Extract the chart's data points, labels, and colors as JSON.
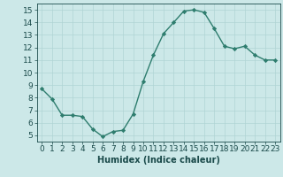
{
  "x": [
    0,
    1,
    2,
    3,
    4,
    5,
    6,
    7,
    8,
    9,
    10,
    11,
    12,
    13,
    14,
    15,
    16,
    17,
    18,
    19,
    20,
    21,
    22,
    23
  ],
  "y": [
    8.7,
    7.9,
    6.6,
    6.6,
    6.5,
    5.5,
    4.9,
    5.3,
    5.4,
    6.7,
    9.3,
    11.4,
    13.1,
    14.0,
    14.9,
    15.0,
    14.8,
    13.5,
    12.1,
    11.9,
    12.1,
    11.4,
    11.0,
    11.0
  ],
  "line_color": "#2e7d6e",
  "bg_color": "#cce8e8",
  "grid_color": "#b0d4d4",
  "xlabel": "Humidex (Indice chaleur)",
  "ylim": [
    4.5,
    15.5
  ],
  "xlim": [
    -0.5,
    23.5
  ],
  "yticks": [
    5,
    6,
    7,
    8,
    9,
    10,
    11,
    12,
    13,
    14,
    15
  ],
  "xticks": [
    0,
    1,
    2,
    3,
    4,
    5,
    6,
    7,
    8,
    9,
    10,
    11,
    12,
    13,
    14,
    15,
    16,
    17,
    18,
    19,
    20,
    21,
    22,
    23
  ],
  "marker": "D",
  "marker_size": 2.2,
  "line_width": 1.0,
  "font_color": "#1a4a4a",
  "xlabel_fontsize": 7,
  "tick_fontsize": 6.5
}
